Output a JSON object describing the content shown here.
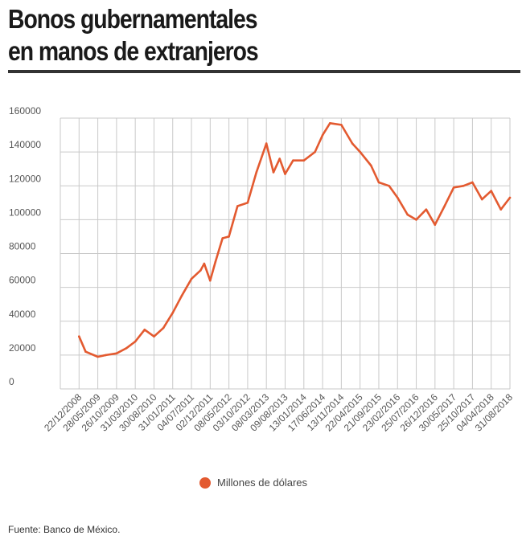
{
  "header": {
    "title_line1": "Bonos gubernamentales",
    "title_line2": "en manos de extranjeros"
  },
  "footer": {
    "source": "Fuente: Banco de México."
  },
  "colors": {
    "series": "#e35a30",
    "grid": "#c9c9c9",
    "rule": "#333333"
  },
  "chart_data": {
    "type": "line",
    "title": "Bonos gubernamentales en manos de extranjeros",
    "xlabel": "",
    "ylabel": "",
    "ylim": [
      0,
      160000
    ],
    "yticks": [
      0,
      20000,
      40000,
      60000,
      80000,
      100000,
      120000,
      140000,
      160000
    ],
    "categories": [
      "22/12/2008",
      "28/05/2009",
      "26/10/2009",
      "31/03/2010",
      "30/08/2010",
      "31/01/2011",
      "04/07/2011",
      "02/12/2011",
      "08/05/2012",
      "03/10/2012",
      "08/03/2013",
      "09/08/2013",
      "13/01/2014",
      "17/06/2014",
      "13/11/2014",
      "22/04/2015",
      "21/09/2015",
      "23/02/2016",
      "25/07/2016",
      "26/12/2016",
      "30/05/2017",
      "25/10/2017",
      "04/04/2018",
      "31/08/2018"
    ],
    "grid": true,
    "legend_position": "bottom",
    "series": [
      {
        "name": "Millones de dólares",
        "x": [
          "22/12/2008",
          "15/02/2009",
          "28/05/2009",
          "01/08/2009",
          "26/10/2009",
          "15/01/2010",
          "31/03/2010",
          "15/06/2010",
          "30/08/2010",
          "15/11/2010",
          "31/01/2011",
          "15/04/2011",
          "04/07/2011",
          "15/09/2011",
          "15/10/2011",
          "02/12/2011",
          "15/01/2012",
          "15/03/2012",
          "08/05/2012",
          "15/07/2012",
          "03/10/2012",
          "15/12/2012",
          "08/03/2013",
          "05/05/2013",
          "25/06/2013",
          "09/08/2013",
          "15/10/2013",
          "13/01/2014",
          "15/04/2014",
          "17/06/2014",
          "15/08/2014",
          "13/11/2014",
          "15/02/2015",
          "22/04/2015",
          "20/07/2015",
          "21/09/2015",
          "15/12/2015",
          "23/02/2016",
          "15/05/2016",
          "25/07/2016",
          "15/10/2016",
          "26/12/2016",
          "15/03/2017",
          "30/05/2017",
          "15/08/2017",
          "25/10/2017",
          "15/01/2018",
          "04/04/2018",
          "20/06/2018",
          "31/08/2018"
        ],
        "values": [
          31000,
          22000,
          19000,
          20000,
          21000,
          24000,
          28000,
          35000,
          31000,
          36000,
          45000,
          55000,
          65000,
          70000,
          74000,
          64000,
          75000,
          89000,
          90000,
          108000,
          110000,
          128000,
          145000,
          128000,
          136000,
          127000,
          135000,
          135000,
          140000,
          150000,
          157000,
          156000,
          145000,
          140000,
          132000,
          122000,
          120000,
          113000,
          103000,
          100000,
          106000,
          97000,
          108000,
          119000,
          120000,
          122000,
          112000,
          117000,
          106000,
          113000
        ]
      }
    ]
  }
}
